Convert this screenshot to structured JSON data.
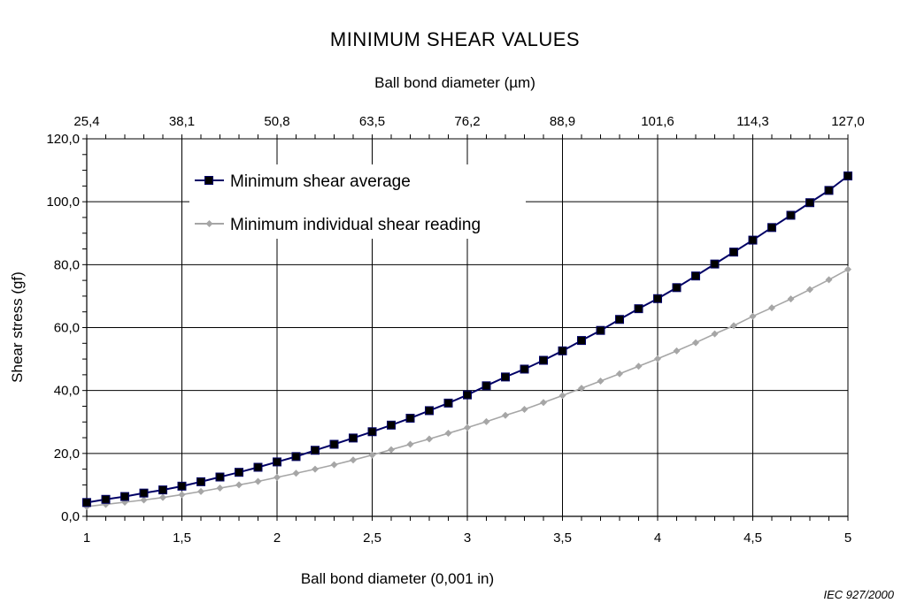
{
  "chart_data": {
    "type": "line",
    "title": "MINIMUM SHEAR VALUES",
    "xlabel": "Ball bond diameter (0,001 in)",
    "x2label": "Ball bond diameter (µm)",
    "ylabel": "Shear stress (gf)",
    "xlim": [
      1,
      5
    ],
    "ylim": [
      0,
      120
    ],
    "grid": true,
    "legend_position": "top-left",
    "x_ticks": [
      "1",
      "1,5",
      "2",
      "2,5",
      "3",
      "3,5",
      "4",
      "4,5",
      "5"
    ],
    "x2_ticks": [
      "25,4",
      "38,1",
      "50,8",
      "63,5",
      "76,2",
      "88,9",
      "101,6",
      "114,3",
      "127,0"
    ],
    "y_ticks": [
      "0,0",
      "20,0",
      "40,0",
      "60,0",
      "80,0",
      "100,0",
      "120,0"
    ],
    "x": [
      1.0,
      1.1,
      1.2,
      1.3,
      1.4,
      1.5,
      1.6,
      1.7,
      1.8,
      1.9,
      2.0,
      2.1,
      2.2,
      2.3,
      2.4,
      2.5,
      2.6,
      2.7,
      2.8,
      2.9,
      3.0,
      3.1,
      3.2,
      3.3,
      3.4,
      3.5,
      3.6,
      3.7,
      3.8,
      3.9,
      4.0,
      4.1,
      4.2,
      4.3,
      4.4,
      4.5,
      4.6,
      4.7,
      4.8,
      4.9,
      5.0
    ],
    "series": [
      {
        "name": "Minimum shear average",
        "color": "#000066",
        "marker": "square",
        "values": [
          4.4,
          5.4,
          6.3,
          7.4,
          8.4,
          9.6,
          11.0,
          12.5,
          14.0,
          15.6,
          17.3,
          19.0,
          21.0,
          22.9,
          24.9,
          26.9,
          29.0,
          31.2,
          33.6,
          36.0,
          38.6,
          41.5,
          44.3,
          46.8,
          49.6,
          52.6,
          55.9,
          59.1,
          62.6,
          66.0,
          69.2,
          72.7,
          76.4,
          80.2,
          84.0,
          87.8,
          91.8,
          95.7,
          99.7,
          103.6,
          108.2
        ]
      },
      {
        "name": "Minimum individual shear reading",
        "color": "#a6a6a6",
        "marker": "diamond",
        "values": [
          3.1,
          3.8,
          4.5,
          5.2,
          6.0,
          6.9,
          7.9,
          9.0,
          10.0,
          11.1,
          12.4,
          13.7,
          15.0,
          16.4,
          17.9,
          19.5,
          21.2,
          22.9,
          24.6,
          26.4,
          28.2,
          30.1,
          32.1,
          34.0,
          36.2,
          38.4,
          40.7,
          43.0,
          45.3,
          47.7,
          50.1,
          52.6,
          55.2,
          58.0,
          60.6,
          63.6,
          66.3,
          69.1,
          72.1,
          75.2,
          78.5
        ]
      }
    ],
    "reference": "IEC  927/2000"
  }
}
